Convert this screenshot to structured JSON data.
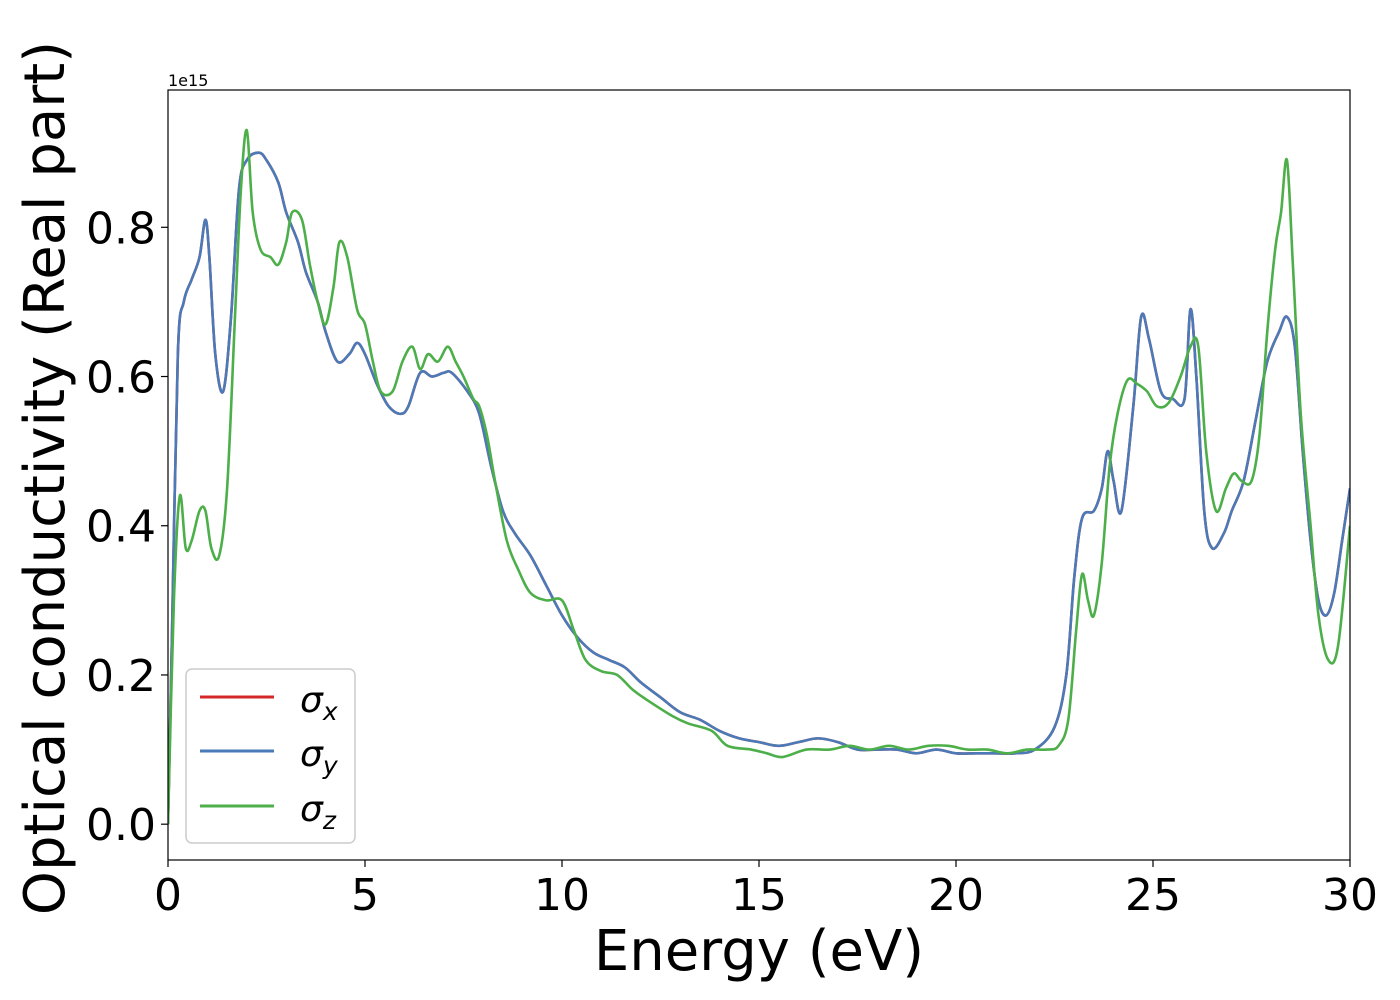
{
  "chart_data": {
    "type": "line",
    "xlabel": "Energy (eV)",
    "ylabel": "Optical conductivity (Real part)",
    "y_offset_text": "1e15",
    "xlim": [
      0,
      30
    ],
    "ylim": [
      -0.048,
      0.984
    ],
    "x_ticks": [
      0,
      5,
      10,
      15,
      20,
      25,
      30
    ],
    "x_tick_labels": [
      "0",
      "5",
      "10",
      "15",
      "20",
      "25",
      "30"
    ],
    "y_ticks": [
      0.0,
      0.2,
      0.4,
      0.6,
      0.8
    ],
    "y_tick_labels": [
      "0.0",
      "0.2",
      "0.4",
      "0.6",
      "0.8"
    ],
    "grid": false,
    "legend_position": "bottom-left",
    "series": [
      {
        "name": "σx",
        "legend_base": "σ",
        "legend_sub": "x",
        "color": "#d62728",
        "x": [
          0,
          0.1,
          0.25,
          0.4,
          0.6,
          0.8,
          0.95,
          1.05,
          1.2,
          1.4,
          1.6,
          1.8,
          2.0,
          2.3,
          2.5,
          2.8,
          3.0,
          3.3,
          3.5,
          3.8,
          4.0,
          4.3,
          4.6,
          4.8,
          5.0,
          5.3,
          5.6,
          5.9,
          6.1,
          6.4,
          6.7,
          7.0,
          7.2,
          7.6,
          7.9,
          8.2,
          8.5,
          8.8,
          9.2,
          9.6,
          10.0,
          10.4,
          10.8,
          11.2,
          11.6,
          12.0,
          12.5,
          13.0,
          13.5,
          14.0,
          14.5,
          15.0,
          15.5,
          16.0,
          16.5,
          17.0,
          17.5,
          18.0,
          18.5,
          19.0,
          19.5,
          20.0,
          20.5,
          21.0,
          21.5,
          22.0,
          22.5,
          22.8,
          23.0,
          23.2,
          23.5,
          23.7,
          23.85,
          24.0,
          24.2,
          24.5,
          24.7,
          24.9,
          25.2,
          25.5,
          25.8,
          25.95,
          26.1,
          26.3,
          26.5,
          26.8,
          27.0,
          27.3,
          27.6,
          27.9,
          28.2,
          28.4,
          28.6,
          28.8,
          29.0,
          29.2,
          29.4,
          29.6,
          29.8,
          30.0
        ],
        "y": [
          0.0,
          0.25,
          0.63,
          0.7,
          0.73,
          0.76,
          0.81,
          0.76,
          0.63,
          0.58,
          0.68,
          0.85,
          0.89,
          0.9,
          0.89,
          0.86,
          0.82,
          0.78,
          0.74,
          0.7,
          0.66,
          0.62,
          0.63,
          0.645,
          0.63,
          0.59,
          0.56,
          0.55,
          0.56,
          0.605,
          0.6,
          0.605,
          0.605,
          0.58,
          0.55,
          0.48,
          0.42,
          0.39,
          0.36,
          0.32,
          0.28,
          0.25,
          0.23,
          0.22,
          0.21,
          0.19,
          0.17,
          0.15,
          0.14,
          0.125,
          0.115,
          0.11,
          0.105,
          0.11,
          0.115,
          0.11,
          0.1,
          0.1,
          0.1,
          0.095,
          0.1,
          0.095,
          0.095,
          0.095,
          0.095,
          0.1,
          0.13,
          0.2,
          0.33,
          0.41,
          0.42,
          0.45,
          0.5,
          0.46,
          0.42,
          0.56,
          0.68,
          0.65,
          0.58,
          0.57,
          0.57,
          0.69,
          0.6,
          0.42,
          0.37,
          0.39,
          0.42,
          0.46,
          0.54,
          0.62,
          0.66,
          0.68,
          0.64,
          0.5,
          0.38,
          0.3,
          0.28,
          0.31,
          0.38,
          0.45
        ]
      },
      {
        "name": "σy",
        "legend_base": "σ",
        "legend_sub": "y",
        "color": "#4a7ab7",
        "x": [
          0,
          0.1,
          0.25,
          0.4,
          0.6,
          0.8,
          0.95,
          1.05,
          1.2,
          1.4,
          1.6,
          1.8,
          2.0,
          2.3,
          2.5,
          2.8,
          3.0,
          3.3,
          3.5,
          3.8,
          4.0,
          4.3,
          4.6,
          4.8,
          5.0,
          5.3,
          5.6,
          5.9,
          6.1,
          6.4,
          6.7,
          7.0,
          7.2,
          7.6,
          7.9,
          8.2,
          8.5,
          8.8,
          9.2,
          9.6,
          10.0,
          10.4,
          10.8,
          11.2,
          11.6,
          12.0,
          12.5,
          13.0,
          13.5,
          14.0,
          14.5,
          15.0,
          15.5,
          16.0,
          16.5,
          17.0,
          17.5,
          18.0,
          18.5,
          19.0,
          19.5,
          20.0,
          20.5,
          21.0,
          21.5,
          22.0,
          22.5,
          22.8,
          23.0,
          23.2,
          23.5,
          23.7,
          23.85,
          24.0,
          24.2,
          24.5,
          24.7,
          24.9,
          25.2,
          25.5,
          25.8,
          25.95,
          26.1,
          26.3,
          26.5,
          26.8,
          27.0,
          27.3,
          27.6,
          27.9,
          28.2,
          28.4,
          28.6,
          28.8,
          29.0,
          29.2,
          29.4,
          29.6,
          29.8,
          30.0
        ],
        "y": [
          0.0,
          0.25,
          0.63,
          0.7,
          0.73,
          0.76,
          0.81,
          0.76,
          0.63,
          0.58,
          0.68,
          0.85,
          0.89,
          0.9,
          0.89,
          0.86,
          0.82,
          0.78,
          0.74,
          0.7,
          0.66,
          0.62,
          0.63,
          0.645,
          0.63,
          0.59,
          0.56,
          0.55,
          0.56,
          0.605,
          0.6,
          0.605,
          0.605,
          0.58,
          0.55,
          0.48,
          0.42,
          0.39,
          0.36,
          0.32,
          0.28,
          0.25,
          0.23,
          0.22,
          0.21,
          0.19,
          0.17,
          0.15,
          0.14,
          0.125,
          0.115,
          0.11,
          0.105,
          0.11,
          0.115,
          0.11,
          0.1,
          0.1,
          0.1,
          0.095,
          0.1,
          0.095,
          0.095,
          0.095,
          0.095,
          0.1,
          0.13,
          0.2,
          0.33,
          0.41,
          0.42,
          0.45,
          0.5,
          0.46,
          0.42,
          0.56,
          0.68,
          0.65,
          0.58,
          0.57,
          0.57,
          0.69,
          0.6,
          0.42,
          0.37,
          0.39,
          0.42,
          0.46,
          0.54,
          0.62,
          0.66,
          0.68,
          0.64,
          0.5,
          0.38,
          0.3,
          0.28,
          0.31,
          0.38,
          0.45
        ]
      },
      {
        "name": "σz",
        "legend_base": "σ",
        "legend_sub": "z",
        "color": "#4daf4a",
        "x": [
          0,
          0.15,
          0.3,
          0.45,
          0.6,
          0.8,
          0.95,
          1.1,
          1.3,
          1.5,
          1.7,
          1.85,
          2.0,
          2.15,
          2.35,
          2.6,
          2.8,
          3.0,
          3.15,
          3.4,
          3.6,
          3.8,
          4.0,
          4.2,
          4.35,
          4.55,
          4.8,
          5.0,
          5.2,
          5.4,
          5.7,
          5.95,
          6.2,
          6.4,
          6.6,
          6.85,
          7.1,
          7.3,
          7.5,
          7.75,
          7.9,
          8.1,
          8.3,
          8.6,
          8.9,
          9.2,
          9.6,
          10.0,
          10.3,
          10.6,
          11.0,
          11.4,
          11.8,
          12.2,
          12.8,
          13.2,
          13.8,
          14.2,
          14.8,
          15.2,
          15.6,
          16.2,
          16.8,
          17.3,
          17.8,
          18.3,
          18.8,
          19.3,
          19.8,
          20.3,
          20.8,
          21.3,
          21.8,
          22.3,
          22.6,
          22.85,
          23.05,
          23.2,
          23.35,
          23.5,
          23.7,
          23.9,
          24.1,
          24.35,
          24.6,
          24.85,
          25.1,
          25.4,
          25.7,
          25.95,
          26.15,
          26.35,
          26.6,
          26.85,
          27.05,
          27.25,
          27.5,
          27.7,
          27.9,
          28.1,
          28.25,
          28.4,
          28.55,
          28.75,
          29.0,
          29.2,
          29.45,
          29.7,
          30.0
        ],
        "y": [
          0.0,
          0.3,
          0.44,
          0.37,
          0.38,
          0.42,
          0.42,
          0.37,
          0.36,
          0.45,
          0.68,
          0.85,
          0.93,
          0.82,
          0.77,
          0.76,
          0.75,
          0.78,
          0.82,
          0.81,
          0.75,
          0.7,
          0.67,
          0.72,
          0.78,
          0.76,
          0.69,
          0.67,
          0.62,
          0.58,
          0.58,
          0.62,
          0.64,
          0.61,
          0.63,
          0.62,
          0.64,
          0.62,
          0.6,
          0.57,
          0.56,
          0.52,
          0.46,
          0.38,
          0.34,
          0.31,
          0.3,
          0.3,
          0.26,
          0.22,
          0.205,
          0.2,
          0.18,
          0.165,
          0.145,
          0.135,
          0.125,
          0.105,
          0.1,
          0.095,
          0.09,
          0.1,
          0.1,
          0.105,
          0.1,
          0.105,
          0.1,
          0.105,
          0.105,
          0.1,
          0.1,
          0.095,
          0.1,
          0.1,
          0.105,
          0.14,
          0.26,
          0.335,
          0.3,
          0.28,
          0.35,
          0.48,
          0.55,
          0.595,
          0.59,
          0.58,
          0.56,
          0.565,
          0.6,
          0.64,
          0.64,
          0.5,
          0.42,
          0.45,
          0.47,
          0.46,
          0.46,
          0.52,
          0.66,
          0.77,
          0.82,
          0.89,
          0.75,
          0.55,
          0.4,
          0.28,
          0.22,
          0.24,
          0.4
        ]
      }
    ]
  }
}
